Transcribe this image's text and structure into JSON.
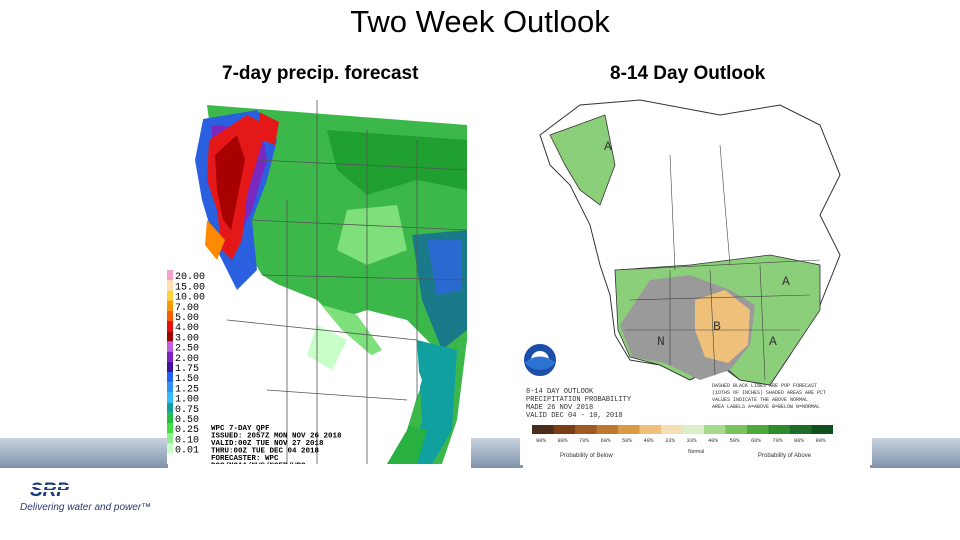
{
  "title": "Two Week Outlook",
  "left_panel": {
    "heading": "7-day precip. forecast",
    "legend_values": [
      "20.00",
      "15.00",
      "10.00",
      "7.00",
      "5.00",
      "4.00",
      "3.00",
      "2.50",
      "2.00",
      "1.75",
      "1.50",
      "1.25",
      "1.00",
      "0.75",
      "0.50",
      "0.25",
      "0.10",
      "0.01"
    ],
    "legend_colors": [
      "#f4a0c8",
      "#ffe0b0",
      "#ffd040",
      "#ff9a00",
      "#ff5a00",
      "#e01010",
      "#a00000",
      "#c060e0",
      "#8020c0",
      "#4010a0",
      "#2060ff",
      "#3090ff",
      "#30c0ff",
      "#10a0a0",
      "#20c040",
      "#40e040",
      "#90f090",
      "#c8ffc8"
    ],
    "caption_lines": [
      "WPC 7-DAY QPF",
      "ISSUED: 2057Z MON NOV 26 2018",
      "VALID:00Z TUE NOV 27 2018",
      "THRU:00Z TUE DEC 04 2018",
      "FORECASTER: WPC",
      "DOC/NOAA/NWS/NCEP/WPC"
    ]
  },
  "right_panel": {
    "heading": "8-14 Day Outlook",
    "caption_lines": [
      "8-14 DAY OUTLOOK",
      "PRECIPITATION PROBABILITY",
      "MADE 26 NOV 2018",
      "VALID DEC 04 - 10, 2018"
    ],
    "note_lines": [
      "DASHED BLACK LINES ARE POP FORECAST",
      "(1OTHS OF INCHES) SHADED AREAS ARE PCT",
      "VALUES INDICATE THE ABOVE NORMAL",
      "AREA LABELS A=ABOVE B=BELOW N=NORMAL"
    ],
    "map_labels": {
      "a_label": "A",
      "b_label": "B",
      "n_label": "N"
    },
    "scale_pct": [
      "90%",
      "80%",
      "70%",
      "60%",
      "50%",
      "40%",
      "33%",
      "33%",
      "40%",
      "50%",
      "60%",
      "70%",
      "80%",
      "90%"
    ],
    "scale_colors": [
      "#4a2c1a",
      "#7a3e14",
      "#9c5a24",
      "#c0772e",
      "#d99a47",
      "#eec07a",
      "#f5dfb5",
      "#d9efc8",
      "#a7d98a",
      "#78c35a",
      "#4ea83c",
      "#2f8a2e",
      "#1e6b28",
      "#10501e"
    ],
    "below_label": "Probability of Below",
    "normal_label": "Normal",
    "above_label": "Probability of Above"
  },
  "logo": {
    "name": "SRP",
    "tagline": "Delivering water and power™"
  }
}
